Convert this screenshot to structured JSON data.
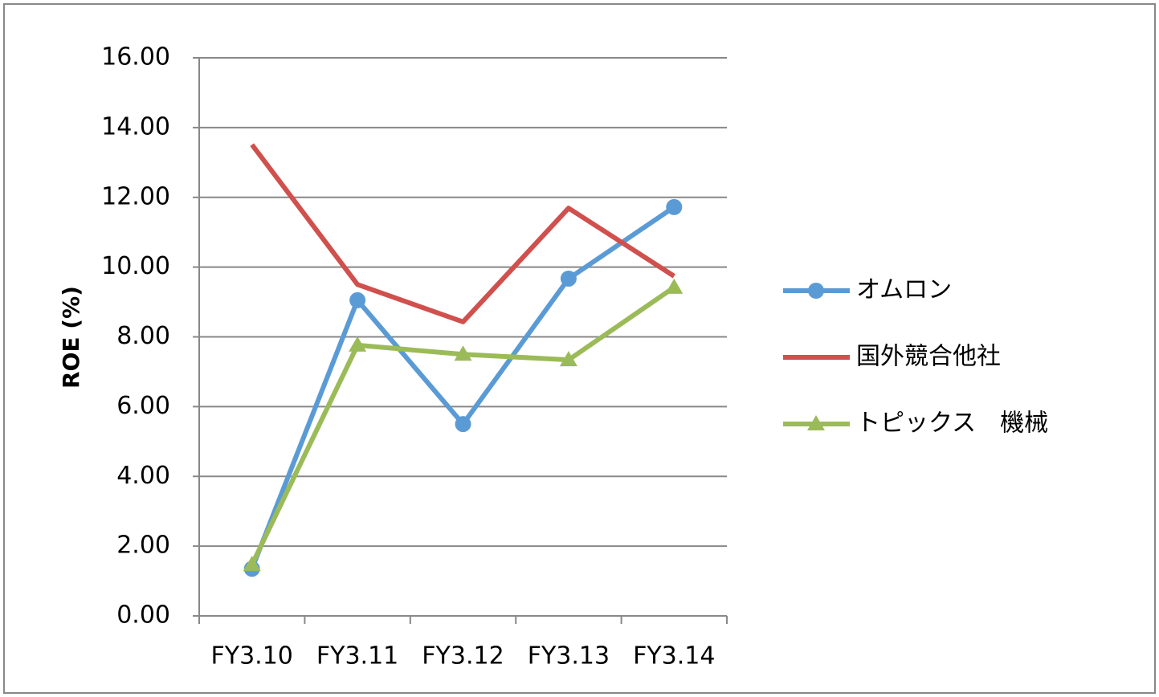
{
  "chart_data": {
    "type": "line",
    "y_label": "ROE (%)",
    "categories": [
      "FY3.10",
      "FY3.11",
      "FY3.12",
      "FY3.13",
      "FY3.14"
    ],
    "series": [
      {
        "name": "オムロン",
        "color": "#5b9bd5",
        "marker": "circle",
        "values": [
          1.35,
          9.05,
          5.5,
          9.67,
          11.72
        ]
      },
      {
        "name": "国外競合他社",
        "color": "#d0504d",
        "marker": "none",
        "values": [
          13.51,
          9.5,
          8.43,
          11.69,
          9.74
        ]
      },
      {
        "name": "トピックス　機械",
        "color": "#9bbb59",
        "marker": "triangle",
        "values": [
          1.47,
          7.76,
          7.5,
          7.34,
          9.42
        ]
      }
    ],
    "ylim": [
      0,
      16
    ],
    "yticks": [
      {
        "value": 0,
        "label": "0.00"
      },
      {
        "value": 2,
        "label": "2.00"
      },
      {
        "value": 4,
        "label": "4.00"
      },
      {
        "value": 6,
        "label": "6.00"
      },
      {
        "value": 8,
        "label": "8.00"
      },
      {
        "value": 10,
        "label": "10.00"
      },
      {
        "value": 12,
        "label": "12.00"
      },
      {
        "value": 14,
        "label": "14.00"
      },
      {
        "value": 16,
        "label": "16.00"
      }
    ],
    "grid": true,
    "legend": "right"
  }
}
